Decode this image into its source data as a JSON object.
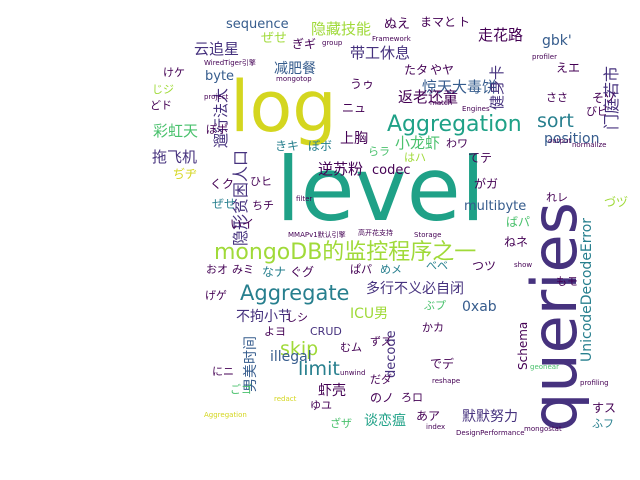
{
  "palette": {
    "purple": "#440154",
    "indigo": "#46327e",
    "blue": "#365c8d",
    "steel": "#277f8e",
    "teal": "#1fa187",
    "green": "#4ac16d",
    "lime": "#a0da39",
    "yellow": "#d4d61f"
  },
  "words": [
    {
      "text": "level",
      "color": "teal"
    },
    {
      "text": "log",
      "color": "yellow"
    },
    {
      "text": "queries",
      "color": "indigo"
    },
    {
      "text": "mongoDB的监控程序之一",
      "color": "lime"
    },
    {
      "text": "Aggregation",
      "color": "teal"
    },
    {
      "text": "Aggregate",
      "color": "steel"
    },
    {
      "text": "sort",
      "color": "steel"
    },
    {
      "text": "limit",
      "color": "steel"
    },
    {
      "text": "skip",
      "color": "lime"
    },
    {
      "text": "position",
      "color": "blue"
    },
    {
      "text": "UnicodeDecodeError",
      "color": "steel"
    },
    {
      "text": "隐藏技能",
      "color": "lime"
    },
    {
      "text": "带工休息",
      "color": "indigo"
    },
    {
      "text": "惊天大毒饼",
      "color": "blue"
    },
    {
      "text": "返老还童",
      "color": "purple"
    },
    {
      "text": "走花路",
      "color": "purple"
    },
    {
      "text": "gbk'",
      "color": "blue"
    },
    {
      "text": "门庭若市",
      "color": "indigo"
    },
    {
      "text": "健身卡",
      "color": "indigo"
    },
    {
      "text": "云追星",
      "color": "indigo"
    },
    {
      "text": "减肥餐",
      "color": "blue"
    },
    {
      "text": "彩虹天",
      "color": "green"
    },
    {
      "text": "拖飞机",
      "color": "indigo"
    },
    {
      "text": "遛行法大",
      "color": "indigo"
    },
    {
      "text": "逆苏粉",
      "color": "purple"
    },
    {
      "text": "codec",
      "color": "purple"
    },
    {
      "text": "上胸",
      "color": "purple"
    },
    {
      "text": "小龙虾",
      "color": "green"
    },
    {
      "text": "隐形贫困人口",
      "color": "indigo"
    },
    {
      "text": "multibyte",
      "color": "blue"
    },
    {
      "text": "0xab",
      "color": "blue"
    },
    {
      "text": "多行不义必自闭",
      "color": "indigo"
    },
    {
      "text": "不拘小节",
      "color": "indigo"
    },
    {
      "text": "ICU男",
      "color": "lime"
    },
    {
      "text": "decode",
      "color": "indigo"
    },
    {
      "text": "虾壳",
      "color": "purple"
    },
    {
      "text": "谈恋瘟",
      "color": "teal"
    },
    {
      "text": "默默努力",
      "color": "indigo"
    },
    {
      "text": "Schema",
      "color": "purple"
    },
    {
      "text": "illegal",
      "color": "blue"
    },
    {
      "text": "男美时间",
      "color": "blue"
    },
    {
      "text": "sequence",
      "color": "blue"
    },
    {
      "text": "byte",
      "color": "blue"
    },
    {
      "text": "CRUD",
      "color": "indigo"
    },
    {
      "text": "ぬえ",
      "color": "purple"
    },
    {
      "text": "まマと",
      "color": "purple"
    },
    {
      "text": "ト",
      "color": "purple"
    },
    {
      "text": "ぜせ",
      "color": "lime"
    },
    {
      "text": "ぎギ",
      "color": "purple"
    },
    {
      "text": "けケ",
      "color": "purple"
    },
    {
      "text": "じジ",
      "color": "lime"
    },
    {
      "text": "どド",
      "color": "purple"
    },
    {
      "text": "ぽポ",
      "color": "purple"
    },
    {
      "text": "きキ",
      "color": "steel"
    },
    {
      "text": "ぼボ",
      "color": "steel"
    },
    {
      "text": "ぢヂ",
      "color": "yellow"
    },
    {
      "text": "くク",
      "color": "purple"
    },
    {
      "text": "ぜせ",
      "color": "steel"
    },
    {
      "text": "いイ",
      "color": "purple"
    },
    {
      "text": "ちチ",
      "color": "purple"
    },
    {
      "text": "おオ",
      "color": "purple"
    },
    {
      "text": "みミ",
      "color": "purple"
    },
    {
      "text": "なナ",
      "color": "steel"
    },
    {
      "text": "ぐグ",
      "color": "purple"
    },
    {
      "text": "ぱパ",
      "color": "purple"
    },
    {
      "text": "めメ",
      "color": "steel"
    },
    {
      "text": "げゲ",
      "color": "purple"
    },
    {
      "text": "よヨ",
      "color": "purple"
    },
    {
      "text": "にニ",
      "color": "purple"
    },
    {
      "text": "ごゴ",
      "color": "green"
    },
    {
      "text": "ゆユ",
      "color": "purple"
    },
    {
      "text": "ざザ",
      "color": "green"
    },
    {
      "text": "のノ",
      "color": "purple"
    },
    {
      "text": "ろロ",
      "color": "purple"
    },
    {
      "text": "あア",
      "color": "purple"
    },
    {
      "text": "でデ",
      "color": "purple"
    },
    {
      "text": "だダ",
      "color": "purple"
    },
    {
      "text": "ずズ",
      "color": "purple"
    },
    {
      "text": "むム",
      "color": "purple"
    },
    {
      "text": "ぶプ",
      "color": "green"
    },
    {
      "text": "かカ",
      "color": "purple"
    },
    {
      "text": "べベ",
      "color": "steel"
    },
    {
      "text": "つツ",
      "color": "purple"
    },
    {
      "text": "ねネ",
      "color": "purple"
    },
    {
      "text": "ばパ",
      "color": "green"
    },
    {
      "text": "がガ",
      "color": "purple"
    },
    {
      "text": "れレ",
      "color": "purple"
    },
    {
      "text": "づヅ",
      "color": "lime"
    },
    {
      "text": "もモ",
      "color": "purple"
    },
    {
      "text": "すス",
      "color": "purple"
    },
    {
      "text": "ふフ",
      "color": "steel"
    },
    {
      "text": "てテ",
      "color": "purple"
    },
    {
      "text": "わワ",
      "color": "purple"
    },
    {
      "text": "はハ",
      "color": "lime"
    },
    {
      "text": "らラ",
      "color": "green"
    },
    {
      "text": "うゥ",
      "color": "purple"
    },
    {
      "text": "たタ",
      "color": "purple"
    },
    {
      "text": "やヤ",
      "color": "purple"
    },
    {
      "text": "ニュ",
      "color": "purple"
    },
    {
      "text": "そゾ",
      "color": "purple"
    },
    {
      "text": "ささ",
      "color": "purple"
    },
    {
      "text": "びビ",
      "color": "purple"
    },
    {
      "text": "えエ",
      "color": "purple"
    },
    {
      "text": "しシ",
      "color": "purple"
    },
    {
      "text": "ひヒ",
      "color": "purple"
    },
    {
      "text": "Framework",
      "color": "purple"
    },
    {
      "text": "group",
      "color": "purple"
    },
    {
      "text": "mongotop",
      "color": "purple"
    },
    {
      "text": "project",
      "color": "purple"
    },
    {
      "text": "WiredTiger引擎",
      "color": "purple"
    },
    {
      "text": "match",
      "color": "purple"
    },
    {
      "text": "Engines",
      "color": "purple"
    },
    {
      "text": "output",
      "color": "purple"
    },
    {
      "text": "normalize",
      "color": "purple"
    },
    {
      "text": "profiler",
      "color": "purple"
    },
    {
      "text": "filter",
      "color": "purple"
    },
    {
      "text": "MMAPv1默认引擎",
      "color": "purple"
    },
    {
      "text": "高开花支持",
      "color": "purple"
    },
    {
      "text": "Storage",
      "color": "purple"
    },
    {
      "text": "unwind",
      "color": "purple"
    },
    {
      "text": "reshape",
      "color": "purple"
    },
    {
      "text": "index",
      "color": "purple"
    },
    {
      "text": "DesignPerformance",
      "color": "purple"
    },
    {
      "text": "mongostat",
      "color": "purple"
    },
    {
      "text": "show",
      "color": "purple"
    },
    {
      "text": "profiling",
      "color": "purple"
    },
    {
      "text": "geonear",
      "color": "green"
    },
    {
      "text": "redact",
      "color": "yellow"
    },
    {
      "text": "Aggregation",
      "color": "yellow"
    }
  ]
}
